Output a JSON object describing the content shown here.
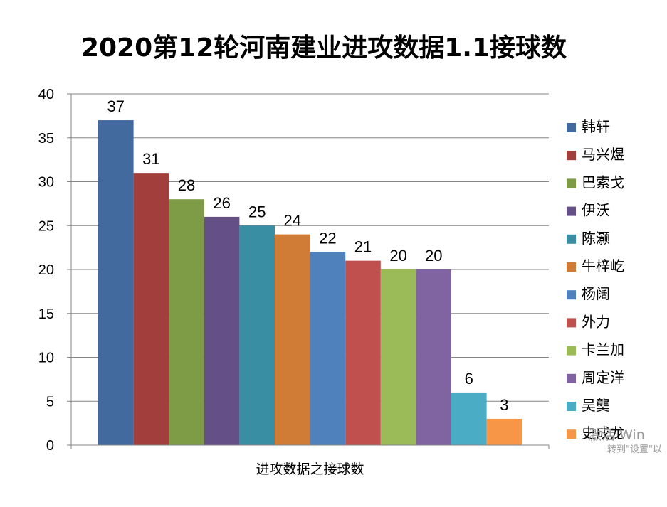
{
  "chart_data": {
    "type": "bar",
    "title": "2020第12轮河南建业进攻数据1.1接球数",
    "xlabel": "进攻数据之接球数",
    "ylabel": "",
    "ylim": [
      0,
      40
    ],
    "yticks": [
      0,
      5,
      10,
      15,
      20,
      25,
      30,
      35,
      40
    ],
    "grid": true,
    "legend_position": "right",
    "series": [
      {
        "name": "韩轩",
        "value": 37,
        "color": "#426A9E"
      },
      {
        "name": "马兴煜",
        "value": 31,
        "color": "#A23F3C"
      },
      {
        "name": "巴索戈",
        "value": 28,
        "color": "#7E9B45"
      },
      {
        "name": "伊沃",
        "value": 26,
        "color": "#654F87"
      },
      {
        "name": "陈灏",
        "value": 25,
        "color": "#3A8EA3"
      },
      {
        "name": "牛梓屹",
        "value": 24,
        "color": "#D07B36"
      },
      {
        "name": "杨阔",
        "value": 22,
        "color": "#4F81BD"
      },
      {
        "name": "外力",
        "value": 21,
        "color": "#C0504D"
      },
      {
        "name": "卡兰加",
        "value": 20,
        "color": "#9BBB59"
      },
      {
        "name": "周定洋",
        "value": 20,
        "color": "#8064A2"
      },
      {
        "name": "吴龑",
        "value": 6,
        "color": "#4BACC6"
      },
      {
        "name": "史成龙",
        "value": 3,
        "color": "#F79646"
      }
    ]
  },
  "watermark": {
    "line1": "激活 Win",
    "line2": "转到\"设置\"以"
  }
}
